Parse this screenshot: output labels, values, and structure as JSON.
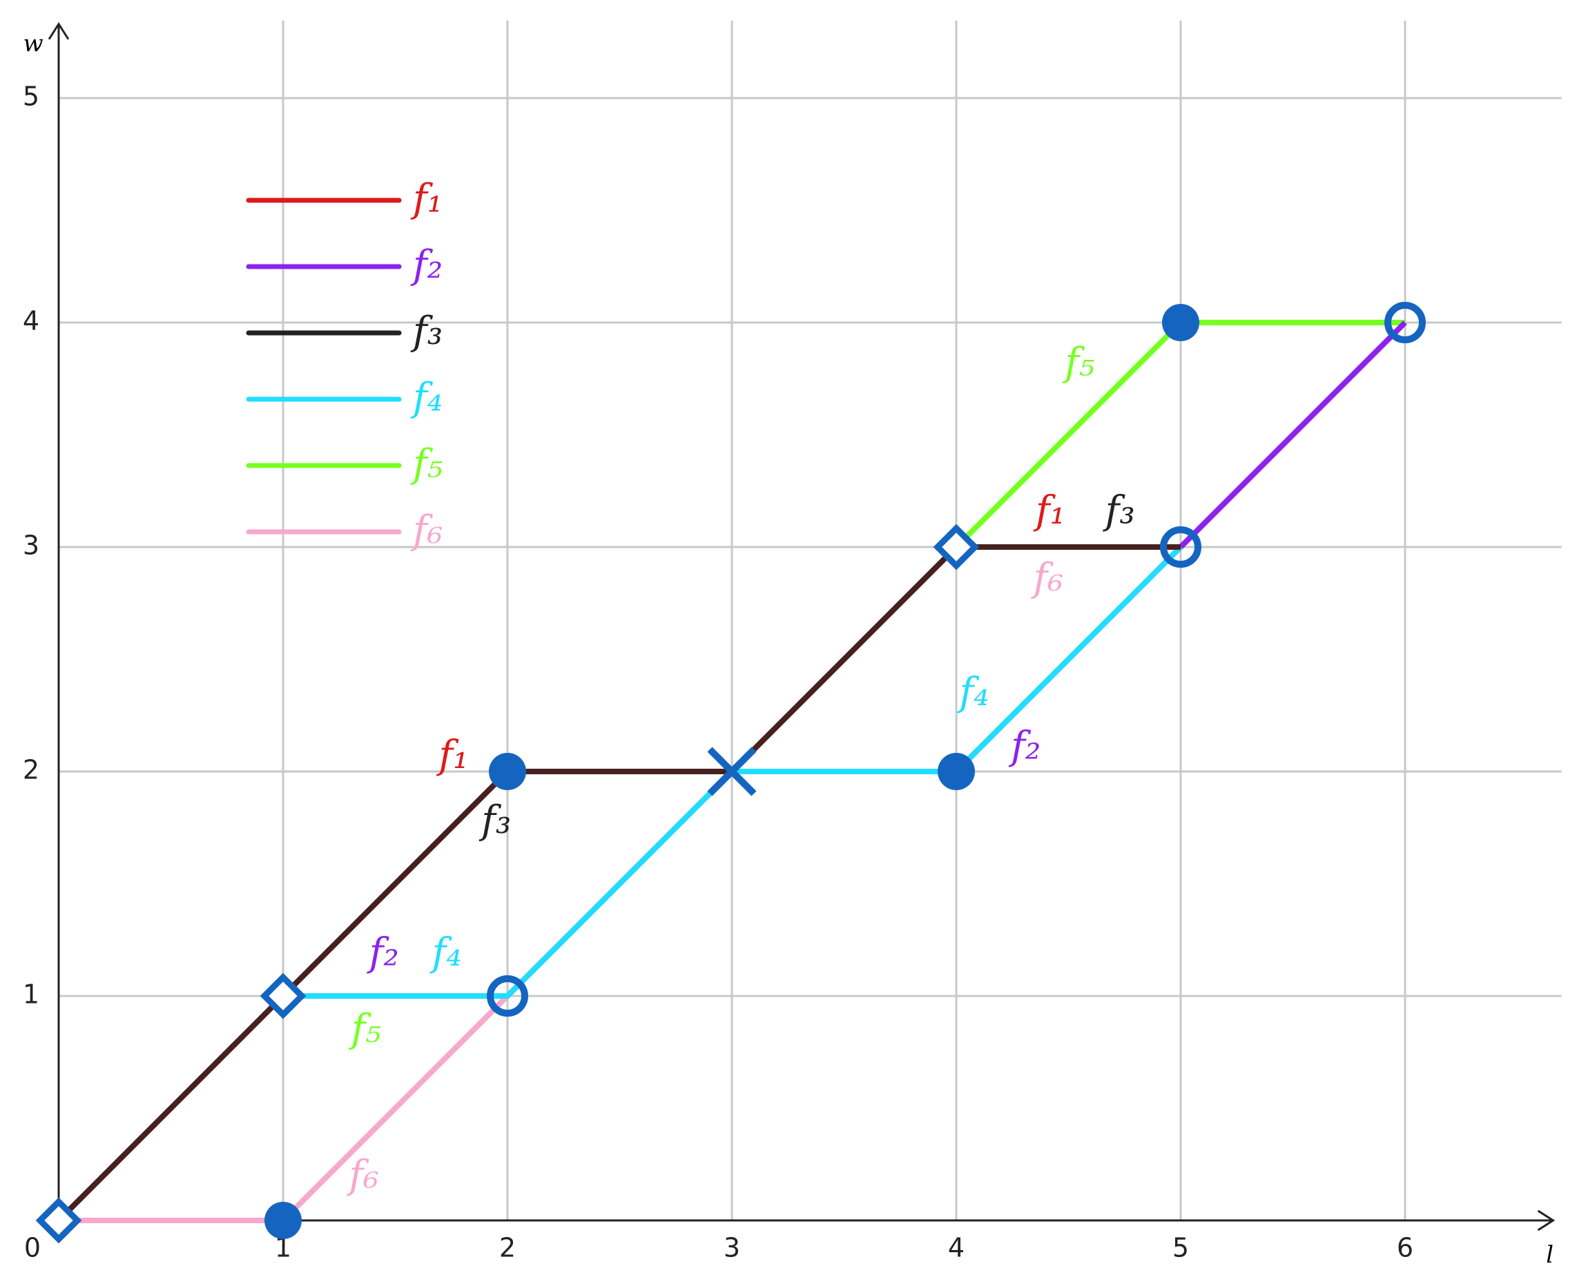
{
  "chart_data": {
    "type": "line",
    "x_label": "l",
    "y_label": "w",
    "xlim": [
      0,
      6.66
    ],
    "ylim": [
      0,
      5.33
    ],
    "xticks": [
      0,
      1,
      2,
      3,
      4,
      5,
      6
    ],
    "yticks": [
      1,
      2,
      3,
      4,
      5
    ],
    "grid": true,
    "legend": "upper left",
    "series": [
      {
        "name": "f₁",
        "color": "#dd1a1a",
        "x": [
          0,
          1,
          2,
          3,
          4,
          5
        ],
        "values": [
          0,
          1,
          2,
          2,
          3,
          3
        ]
      },
      {
        "name": "f₂",
        "color": "#8b22ee",
        "x": [
          0,
          1,
          2,
          3,
          4,
          5,
          6
        ],
        "values": [
          0,
          1,
          1,
          2,
          2,
          3,
          4
        ]
      },
      {
        "name": "f₃",
        "color": "#222222",
        "x": [
          0,
          1,
          2,
          3,
          4,
          5
        ],
        "values": [
          0,
          1,
          2,
          2,
          3,
          3
        ]
      },
      {
        "name": "f₄",
        "color": "#22ddff",
        "x": [
          0,
          1,
          2,
          3,
          4,
          5
        ],
        "values": [
          0,
          1,
          1,
          2,
          2,
          3
        ]
      },
      {
        "name": "f₅",
        "color": "#77ff22",
        "x": [
          0,
          1,
          2,
          3,
          4,
          5,
          6
        ],
        "values": [
          0,
          1,
          1,
          2,
          3,
          4,
          4
        ]
      },
      {
        "name": "f₆",
        "color": "#f7a8cc",
        "x": [
          0,
          1,
          2,
          3,
          4,
          5,
          6
        ],
        "values": [
          0,
          0,
          1,
          2,
          3,
          3,
          4
        ]
      }
    ],
    "marker_color": "#1565c0",
    "points": [
      {
        "marker": "diamond",
        "x": 0,
        "y": 0
      },
      {
        "marker": "diamond",
        "x": 1,
        "y": 1
      },
      {
        "marker": "diamond",
        "x": 4,
        "y": 3
      },
      {
        "marker": "filled",
        "x": 1,
        "y": 0
      },
      {
        "marker": "filled",
        "x": 2,
        "y": 2
      },
      {
        "marker": "filled",
        "x": 4,
        "y": 2
      },
      {
        "marker": "filled",
        "x": 5,
        "y": 4
      },
      {
        "marker": "open",
        "x": 2,
        "y": 1
      },
      {
        "marker": "open",
        "x": 5,
        "y": 3
      },
      {
        "marker": "open",
        "x": 6,
        "y": 4
      },
      {
        "marker": "cross",
        "x": 3,
        "y": 2
      }
    ]
  }
}
